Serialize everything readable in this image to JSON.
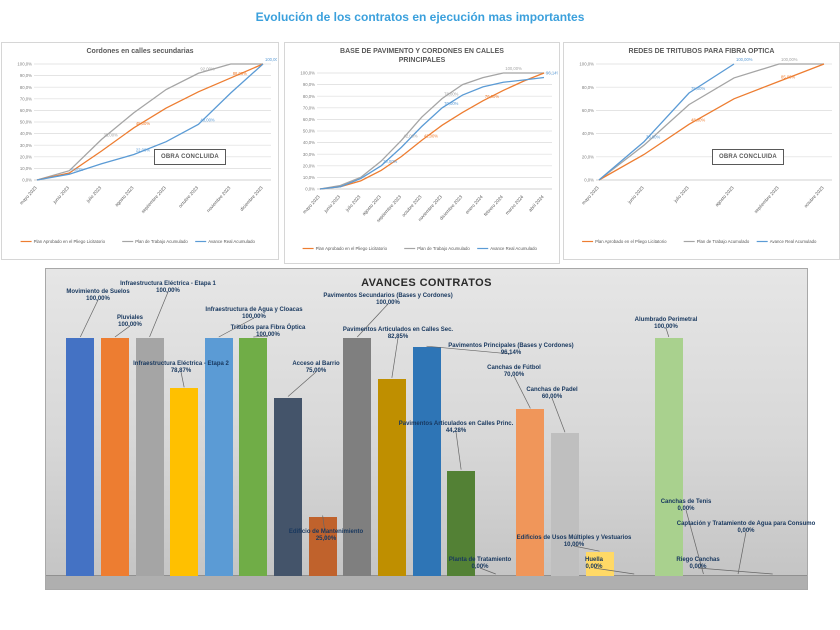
{
  "page": {
    "title": "Evolución de los contratos en ejecución mas importantes"
  },
  "colors": {
    "accent_blue": "#3BA0DC",
    "line_gray": "#A5A5A5",
    "line_orange": "#ED7D31",
    "line_blue": "#5B9BD5"
  },
  "chart_data": [
    {
      "type": "line",
      "title": "Cordones en calles secundarias",
      "badge": "OBRA CONCLUIDA",
      "ylim": [
        0,
        100
      ],
      "ytick_step": 10,
      "grid": true,
      "legend_position": "bottom",
      "categories": [
        "mayo 2023",
        "junio 2023",
        "julio 2023",
        "agosto 2023",
        "septiembre 2023",
        "octubre 2023",
        "noviembre 2023",
        "diciembre 2023"
      ],
      "series": [
        {
          "name": "Plan de Trabajo Acumulado",
          "color": "#A5A5A5",
          "values": [
            0,
            8,
            35,
            58,
            78,
            92,
            100,
            100
          ]
        },
        {
          "name": "Plan Aprobado en el Pliego Licitatorio",
          "color": "#ED7D31",
          "values": [
            0,
            6,
            25,
            45,
            62,
            76,
            88,
            100
          ]
        },
        {
          "name": "Avance Real Acumulado",
          "color": "#5B9BD5",
          "values": [
            0,
            5,
            14,
            22,
            33,
            48,
            75,
            100
          ]
        }
      ],
      "point_labels": [
        [
          0,
          2
        ],
        [
          0,
          5
        ],
        [
          1,
          3
        ],
        [
          1,
          6
        ],
        [
          2,
          1
        ],
        [
          2,
          3
        ],
        [
          2,
          5
        ],
        [
          2,
          7
        ]
      ],
      "legend": [
        {
          "label": "Plan Aprobado en el Pliego Licitatorio",
          "color": "#ED7D31"
        },
        {
          "label": "Plan de Trabajo Acumulado",
          "color": "#A5A5A5"
        },
        {
          "label": "Avance Real Acumulado",
          "color": "#5B9BD5"
        }
      ]
    },
    {
      "type": "line",
      "title": "BASE DE PAVIMENTO Y CORDONES EN CALLES PRINCIPALES",
      "ylim": [
        0,
        100
      ],
      "ytick_step": 10,
      "grid": true,
      "legend_position": "bottom",
      "categories": [
        "mayo 2023",
        "junio 2023",
        "julio 2023",
        "agosto 2023",
        "septiembre 2023",
        "octubre 2023",
        "noviembre 2023",
        "diciembre 2023",
        "enero 2024",
        "febrero 2024",
        "marzo 2024",
        "abril 2024"
      ],
      "series": [
        {
          "name": "Plan de Trabajo Acumulado",
          "color": "#A5A5A5",
          "values": [
            0,
            3,
            10,
            24,
            42,
            62,
            78,
            90,
            96,
            100,
            100,
            100
          ]
        },
        {
          "name": "Plan Aprobado en el Pliego Licitatorio",
          "color": "#ED7D31",
          "values": [
            0,
            2,
            7,
            16,
            28,
            42,
            55,
            66,
            76,
            85,
            93,
            100
          ]
        },
        {
          "name": "Avance Real Acumulado",
          "color": "#5B9BD5",
          "values": [
            0,
            2,
            9,
            20,
            36,
            54,
            70,
            81,
            88,
            92,
            94,
            96.14
          ]
        }
      ],
      "point_labels": [
        [
          0,
          4
        ],
        [
          0,
          6
        ],
        [
          0,
          9
        ],
        [
          1,
          5
        ],
        [
          1,
          8
        ],
        [
          2,
          3
        ],
        [
          2,
          6
        ],
        [
          2,
          11
        ]
      ],
      "legend": [
        {
          "label": "Plan Aprobado en el Pliego Licitatorio",
          "color": "#ED7D31"
        },
        {
          "label": "Plan de Trabajo Acumulado",
          "color": "#A5A5A5"
        },
        {
          "label": "Avance Real Acumulado",
          "color": "#5B9BD5"
        }
      ]
    },
    {
      "type": "line",
      "title": "REDES DE TRITUBOS PARA FIBRA OPTICA",
      "badge": "OBRA CONCLUIDA",
      "ylim": [
        0,
        100
      ],
      "ytick_step": 20,
      "grid": true,
      "legend_position": "bottom",
      "categories": [
        "mayo 2023",
        "junio 2023",
        "julio 2023",
        "agosto 2023",
        "septiembre 2023",
        "octubre 2023"
      ],
      "series": [
        {
          "name": "Plan de Trabajo Acumulado",
          "color": "#A5A5A5",
          "values": [
            0,
            30,
            65,
            88,
            100,
            100
          ]
        },
        {
          "name": "Plan Aprobado en el Pliego Licitatorio",
          "color": "#ED7D31",
          "values": [
            0,
            22,
            48,
            70,
            85,
            100
          ]
        },
        {
          "name": "Avance Real Acumulado",
          "color": "#5B9BD5",
          "values": [
            0,
            33,
            75,
            100,
            null,
            null
          ]
        }
      ],
      "point_labels": [
        [
          0,
          4
        ],
        [
          1,
          2
        ],
        [
          1,
          4
        ],
        [
          2,
          1
        ],
        [
          2,
          2
        ],
        [
          2,
          3
        ]
      ],
      "legend": [
        {
          "label": "Plan Aprobado en el Pliego Licitatorio",
          "color": "#ED7D31"
        },
        {
          "label": "Plan de Trabajo Acumulado",
          "color": "#A5A5A5"
        },
        {
          "label": "Avance Real Acumulado",
          "color": "#5B9BD5"
        }
      ]
    },
    {
      "type": "bar",
      "title": "AVANCES CONTRATOS",
      "ylim": [
        0,
        100
      ],
      "bars": [
        {
          "name": "Movimiento de Suelos",
          "pct": "100,00%",
          "value": 100,
          "color": "#4472C4"
        },
        {
          "name": "Pluviales",
          "pct": "100,00%",
          "value": 100,
          "color": "#ED7D31"
        },
        {
          "name": "Infraestructura Eléctrica - Etapa 1",
          "pct": "100,00%",
          "value": 100,
          "color": "#A5A5A5"
        },
        {
          "name": "Infraestructura Eléctrica - Etapa 2",
          "pct": "78,87%",
          "value": 78.87,
          "color": "#FFC000"
        },
        {
          "name": "Infraestructura de Agua y Cloacas",
          "pct": "100,00%",
          "value": 100,
          "color": "#5B9BD5"
        },
        {
          "name": "Tritubos para Fibra Óptica",
          "pct": "100,00%",
          "value": 100,
          "color": "#70AD47"
        },
        {
          "name": "Acceso al Barrio",
          "pct": "75,00%",
          "value": 75,
          "color": "#44546A"
        },
        {
          "name": "Edificio de Mantenimiento",
          "pct": "25,00%",
          "value": 25,
          "color": "#C0622C"
        },
        {
          "name": "Pavimentos Secundarios (Bases y Cordones)",
          "pct": "100,00%",
          "value": 100,
          "color": "#7F7F7F"
        },
        {
          "name": "Pavimentos Articulados en Calles Sec.",
          "pct": "82,85%",
          "value": 82.85,
          "color": "#BF8F00"
        },
        {
          "name": "Pavimentos Principales (Bases y Cordones)",
          "pct": "96,14%",
          "value": 96.14,
          "color": "#2E75B6"
        },
        {
          "name": "Pavimentos Articulados en Calles Princ.",
          "pct": "44,28%",
          "value": 44.28,
          "color": "#538135"
        },
        {
          "name": "Planta de Tratamiento",
          "pct": "0,00%",
          "value": 0,
          "color": null
        },
        {
          "name": "Canchas de Fútbol",
          "pct": "70,00%",
          "value": 70,
          "color": "#F0965A"
        },
        {
          "name": "Canchas de Padel",
          "pct": "60,00%",
          "value": 60,
          "color": "#BFBFBF"
        },
        {
          "name": "Edificios de Usos Múltiples y Vestuarios",
          "pct": "10,00%",
          "value": 10,
          "color": "#FFD966"
        },
        {
          "name": "Huella",
          "pct": "0,00%",
          "value": 0,
          "color": null
        },
        {
          "name": "Alumbrado Perimetral",
          "pct": "100,00%",
          "value": 100,
          "color": "#A9D18E"
        },
        {
          "name": "Canchas de Tenis",
          "pct": "0,00%",
          "value": 0,
          "color": null
        },
        {
          "name": "Captación y Tratamiento de Agua para Consumo",
          "pct": "0,00%",
          "value": 0,
          "color": null
        },
        {
          "name": "Riego Canchas",
          "pct": "0,00%",
          "value": 0,
          "color": null
        }
      ]
    }
  ]
}
